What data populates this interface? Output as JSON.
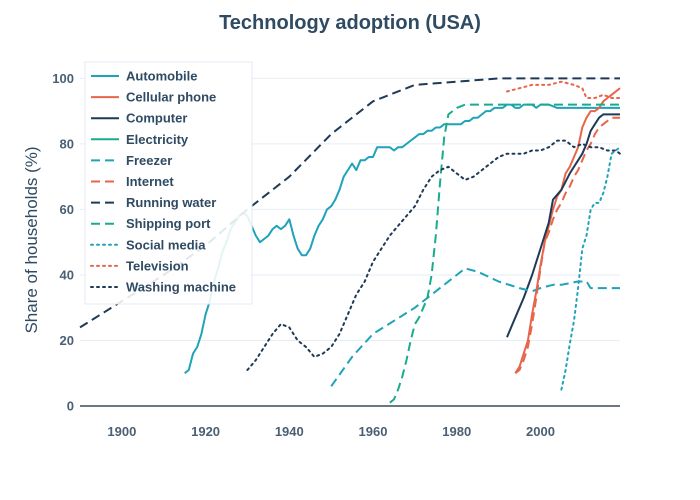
{
  "chart_data": {
    "type": "line",
    "title": "Technology adoption (USA)",
    "xlabel": "",
    "ylabel": "Share of households (%)",
    "xlim": [
      1890,
      2019
    ],
    "ylim": [
      0,
      105
    ],
    "xticks": [
      1900,
      1920,
      1940,
      1960,
      1980,
      2000
    ],
    "yticks": [
      0,
      20,
      40,
      60,
      80,
      100
    ],
    "grid": true,
    "legend_position": "top-left",
    "series": [
      {
        "name": "Automobile",
        "color": "#1fa3b8",
        "dash": "solid",
        "points": [
          [
            1915,
            10
          ],
          [
            1916,
            11
          ],
          [
            1917,
            16
          ],
          [
            1918,
            18
          ],
          [
            1919,
            22
          ],
          [
            1920,
            28
          ],
          [
            1921,
            32
          ],
          [
            1922,
            38
          ],
          [
            1923,
            42
          ],
          [
            1924,
            47
          ],
          [
            1925,
            50
          ],
          [
            1926,
            54
          ],
          [
            1927,
            56
          ],
          [
            1928,
            58
          ],
          [
            1929,
            59
          ],
          [
            1930,
            58
          ],
          [
            1931,
            55
          ],
          [
            1932,
            52
          ],
          [
            1933,
            50
          ],
          [
            1934,
            51
          ],
          [
            1935,
            52
          ],
          [
            1936,
            54
          ],
          [
            1937,
            55
          ],
          [
            1938,
            54
          ],
          [
            1939,
            55
          ],
          [
            1940,
            57
          ],
          [
            1941,
            52
          ],
          [
            1942,
            48
          ],
          [
            1943,
            46
          ],
          [
            1944,
            46
          ],
          [
            1945,
            48
          ],
          [
            1946,
            52
          ],
          [
            1947,
            55
          ],
          [
            1948,
            57
          ],
          [
            1949,
            60
          ],
          [
            1950,
            61
          ],
          [
            1951,
            63
          ],
          [
            1952,
            66
          ],
          [
            1953,
            70
          ],
          [
            1954,
            72
          ],
          [
            1955,
            74
          ],
          [
            1956,
            72
          ],
          [
            1957,
            75
          ],
          [
            1958,
            75
          ],
          [
            1959,
            76
          ],
          [
            1960,
            76
          ],
          [
            1961,
            79
          ],
          [
            1962,
            79
          ],
          [
            1963,
            79
          ],
          [
            1964,
            79
          ],
          [
            1965,
            78
          ],
          [
            1966,
            79
          ],
          [
            1967,
            79
          ],
          [
            1968,
            80
          ],
          [
            1969,
            81
          ],
          [
            1970,
            82
          ],
          [
            1971,
            83
          ],
          [
            1972,
            83
          ],
          [
            1973,
            84
          ],
          [
            1974,
            84
          ],
          [
            1975,
            85
          ],
          [
            1976,
            85
          ],
          [
            1977,
            86
          ],
          [
            1978,
            86
          ],
          [
            1979,
            86
          ],
          [
            1980,
            86
          ],
          [
            1981,
            86
          ],
          [
            1982,
            87
          ],
          [
            1983,
            87
          ],
          [
            1984,
            88
          ],
          [
            1985,
            88
          ],
          [
            1986,
            89
          ],
          [
            1987,
            90
          ],
          [
            1988,
            90
          ],
          [
            1989,
            91
          ],
          [
            1990,
            91
          ],
          [
            1991,
            91
          ],
          [
            1992,
            92
          ],
          [
            1993,
            92
          ],
          [
            1994,
            91
          ],
          [
            1995,
            91
          ],
          [
            1996,
            92
          ],
          [
            1997,
            92
          ],
          [
            1998,
            92
          ],
          [
            1999,
            91
          ],
          [
            2000,
            92
          ],
          [
            2001,
            92
          ],
          [
            2002,
            92
          ],
          [
            2004,
            91
          ],
          [
            2006,
            91
          ],
          [
            2008,
            91
          ],
          [
            2010,
            91
          ],
          [
            2012,
            91
          ],
          [
            2015,
            91
          ],
          [
            2019,
            91
          ]
        ]
      },
      {
        "name": "Cellular phone",
        "color": "#e8644a",
        "dash": "solid",
        "points": [
          [
            1994,
            10
          ],
          [
            1995,
            12
          ],
          [
            1996,
            16
          ],
          [
            1997,
            20
          ],
          [
            1998,
            28
          ],
          [
            1999,
            35
          ],
          [
            2000,
            43
          ],
          [
            2001,
            50
          ],
          [
            2002,
            55
          ],
          [
            2003,
            60
          ],
          [
            2004,
            64
          ],
          [
            2005,
            66
          ],
          [
            2006,
            71
          ],
          [
            2007,
            73
          ],
          [
            2008,
            76
          ],
          [
            2009,
            79
          ],
          [
            2010,
            85
          ],
          [
            2011,
            88
          ],
          [
            2012,
            90
          ],
          [
            2013,
            90
          ],
          [
            2014,
            91
          ],
          [
            2015,
            93
          ],
          [
            2016,
            94
          ],
          [
            2017,
            95
          ],
          [
            2018,
            96
          ],
          [
            2019,
            97
          ]
        ]
      },
      {
        "name": "Computer",
        "color": "#1f3a56",
        "dash": "solid",
        "points": [
          [
            1992,
            21
          ],
          [
            1994,
            27
          ],
          [
            1996,
            33
          ],
          [
            1998,
            40
          ],
          [
            2000,
            48
          ],
          [
            2002,
            56
          ],
          [
            2003,
            63
          ],
          [
            2005,
            66
          ],
          [
            2007,
            71
          ],
          [
            2009,
            75
          ],
          [
            2010,
            77
          ],
          [
            2011,
            80
          ],
          [
            2012,
            84
          ],
          [
            2013,
            86
          ],
          [
            2014,
            88
          ],
          [
            2015,
            89
          ],
          [
            2016,
            89
          ],
          [
            2017,
            89
          ],
          [
            2019,
            89
          ]
        ]
      },
      {
        "name": "Electricity",
        "color": "#1aab8c",
        "dash": "solid",
        "points": []
      },
      {
        "name": "Freezer",
        "color": "#1fa3b8",
        "dash": "dash",
        "points": [
          [
            1950,
            6
          ],
          [
            1955,
            15
          ],
          [
            1960,
            22
          ],
          [
            1965,
            26
          ],
          [
            1970,
            30
          ],
          [
            1975,
            35
          ],
          [
            1980,
            40
          ],
          [
            1982,
            42
          ],
          [
            1985,
            41
          ],
          [
            1990,
            38
          ],
          [
            1995,
            36
          ],
          [
            1998,
            35
          ],
          [
            2000,
            36
          ],
          [
            2003,
            37
          ],
          [
            2005,
            37
          ],
          [
            2009,
            38
          ],
          [
            2011,
            38
          ],
          [
            2012,
            36
          ],
          [
            2015,
            36
          ],
          [
            2019,
            36
          ]
        ]
      },
      {
        "name": "Internet",
        "color": "#e8644a",
        "dash": "dash",
        "points": [
          [
            1994,
            10
          ],
          [
            1995,
            11
          ],
          [
            1996,
            14
          ],
          [
            1997,
            18
          ],
          [
            1998,
            25
          ],
          [
            1999,
            33
          ],
          [
            2000,
            42
          ],
          [
            2001,
            50
          ],
          [
            2002,
            53
          ],
          [
            2003,
            57
          ],
          [
            2004,
            60
          ],
          [
            2005,
            62
          ],
          [
            2006,
            65
          ],
          [
            2007,
            67
          ],
          [
            2008,
            70
          ],
          [
            2009,
            72
          ],
          [
            2010,
            75
          ],
          [
            2011,
            78
          ],
          [
            2012,
            80
          ],
          [
            2013,
            83
          ],
          [
            2014,
            85
          ],
          [
            2015,
            86
          ],
          [
            2016,
            87
          ],
          [
            2017,
            88
          ],
          [
            2019,
            88
          ]
        ]
      },
      {
        "name": "Running water",
        "color": "#1f3a56",
        "dash": "dash",
        "points": [
          [
            1890,
            24
          ],
          [
            1900,
            32
          ],
          [
            1910,
            40
          ],
          [
            1920,
            49
          ],
          [
            1930,
            60
          ],
          [
            1940,
            70
          ],
          [
            1950,
            83
          ],
          [
            1960,
            93
          ],
          [
            1970,
            98
          ],
          [
            1980,
            99
          ],
          [
            1990,
            100
          ],
          [
            2000,
            100
          ],
          [
            2010,
            100
          ],
          [
            2019,
            100
          ]
        ]
      },
      {
        "name": "Shipping port",
        "color": "#1aab8c",
        "dash": "dash",
        "points": [
          [
            1964,
            1
          ],
          [
            1965,
            2
          ],
          [
            1966,
            5
          ],
          [
            1967,
            9
          ],
          [
            1968,
            14
          ],
          [
            1969,
            20
          ],
          [
            1970,
            25
          ],
          [
            1971,
            27
          ],
          [
            1972,
            30
          ],
          [
            1973,
            33
          ],
          [
            1974,
            40
          ],
          [
            1975,
            52
          ],
          [
            1976,
            68
          ],
          [
            1977,
            82
          ],
          [
            1978,
            89
          ],
          [
            1979,
            90
          ],
          [
            1980,
            91
          ],
          [
            1982,
            92
          ],
          [
            1985,
            92
          ],
          [
            1990,
            92
          ],
          [
            2000,
            92
          ],
          [
            2010,
            92
          ],
          [
            2019,
            92
          ]
        ]
      },
      {
        "name": "Social media",
        "color": "#1fa3b8",
        "dash": "dot",
        "points": [
          [
            2005,
            5
          ],
          [
            2006,
            11
          ],
          [
            2007,
            19
          ],
          [
            2008,
            26
          ],
          [
            2009,
            36
          ],
          [
            2010,
            48
          ],
          [
            2011,
            52
          ],
          [
            2012,
            60
          ],
          [
            2013,
            62
          ],
          [
            2014,
            62
          ],
          [
            2015,
            65
          ],
          [
            2016,
            70
          ],
          [
            2017,
            77
          ],
          [
            2018,
            78
          ],
          [
            2019,
            79
          ]
        ]
      },
      {
        "name": "Television",
        "color": "#e8644a",
        "dash": "dot",
        "points": [
          [
            1992,
            96
          ],
          [
            1995,
            97
          ],
          [
            1998,
            98
          ],
          [
            2000,
            98
          ],
          [
            2002,
            98
          ],
          [
            2005,
            99
          ],
          [
            2008,
            98
          ],
          [
            2010,
            97
          ],
          [
            2011,
            94
          ],
          [
            2013,
            94
          ],
          [
            2015,
            95
          ],
          [
            2017,
            94
          ],
          [
            2019,
            94
          ]
        ]
      },
      {
        "name": "Washing machine",
        "color": "#1f3a56",
        "dash": "dot",
        "points": [
          [
            1930,
            11
          ],
          [
            1932,
            14
          ],
          [
            1934,
            18
          ],
          [
            1936,
            22
          ],
          [
            1938,
            25
          ],
          [
            1940,
            24
          ],
          [
            1942,
            20
          ],
          [
            1944,
            18
          ],
          [
            1946,
            15
          ],
          [
            1948,
            16
          ],
          [
            1950,
            18
          ],
          [
            1952,
            22
          ],
          [
            1954,
            28
          ],
          [
            1956,
            34
          ],
          [
            1958,
            38
          ],
          [
            1960,
            44
          ],
          [
            1962,
            48
          ],
          [
            1964,
            52
          ],
          [
            1966,
            55
          ],
          [
            1968,
            58
          ],
          [
            1970,
            61
          ],
          [
            1972,
            66
          ],
          [
            1974,
            70
          ],
          [
            1976,
            72
          ],
          [
            1978,
            73
          ],
          [
            1980,
            71
          ],
          [
            1982,
            69
          ],
          [
            1984,
            70
          ],
          [
            1986,
            72
          ],
          [
            1988,
            74
          ],
          [
            1990,
            76
          ],
          [
            1992,
            77
          ],
          [
            1994,
            77
          ],
          [
            1996,
            77
          ],
          [
            1998,
            78
          ],
          [
            2000,
            78
          ],
          [
            2002,
            79
          ],
          [
            2004,
            81
          ],
          [
            2006,
            81
          ],
          [
            2008,
            79
          ],
          [
            2010,
            80
          ],
          [
            2012,
            79
          ],
          [
            2014,
            79
          ],
          [
            2016,
            78
          ],
          [
            2018,
            78
          ],
          [
            2019,
            77
          ]
        ]
      }
    ]
  }
}
